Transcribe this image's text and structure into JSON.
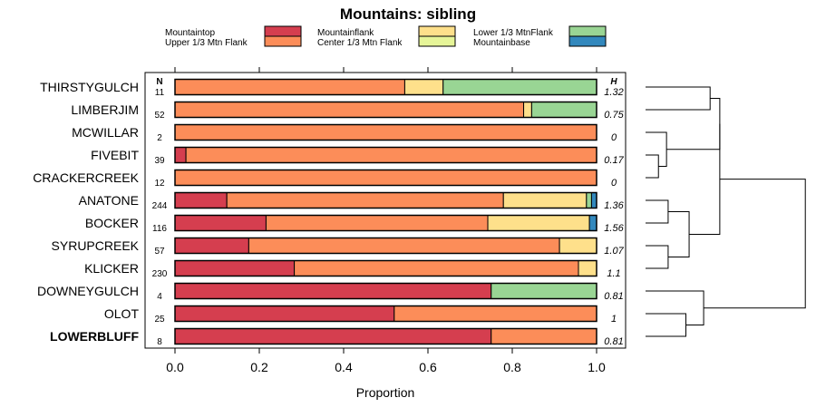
{
  "chart_data": {
    "type": "bar",
    "stacked": true,
    "orientation": "horizontal",
    "title": "Mountains: sibling",
    "xlabel": "Proportion",
    "xlim": [
      0,
      1
    ],
    "xticks": [
      "0.0",
      "0.2",
      "0.4",
      "0.6",
      "0.8",
      "1.0"
    ],
    "n_header": "N",
    "h_header": "H",
    "legend": [
      {
        "label": "Mountaintop",
        "color": "#D53E4F"
      },
      {
        "label": "Upper 1/3 Mtn Flank",
        "color": "#FC8D59"
      },
      {
        "label": "Mountainflank",
        "color": "#FEE08B"
      },
      {
        "label": "Center 1/3 Mtn Flank",
        "color": "#E6F598"
      },
      {
        "label": "Lower 1/3 MtnFlank",
        "color": "#99D594"
      },
      {
        "label": "Mountainbase",
        "color": "#3288BD"
      }
    ],
    "categories": [
      "THIRSTYGULCH",
      "LIMBERJIM",
      "MCWILLAR",
      "FIVEBIT",
      "CRACKERCREEK",
      "ANATONE",
      "BOCKER",
      "SYRUPCREEK",
      "KLICKER",
      "DOWNEYGULCH",
      "OLOT",
      "LOWERBLUFF"
    ],
    "bold_category": "LOWERBLUFF",
    "n": [
      "11",
      "52",
      "2",
      "39",
      "12",
      "244",
      "116",
      "57",
      "230",
      "4",
      "25",
      "8"
    ],
    "h": [
      "1.32",
      "0.75",
      "0",
      "0.17",
      "0",
      "1.36",
      "1.56",
      "1.07",
      "1.1",
      "0.81",
      "1",
      "0.81"
    ],
    "series": [
      {
        "name": "Mountaintop",
        "values": [
          0,
          0,
          0,
          0.026,
          0,
          0.123,
          0.216,
          0.175,
          0.283,
          0.75,
          0.52,
          0.75
        ]
      },
      {
        "name": "Upper 1/3 Mtn Flank",
        "values": [
          0.545,
          0.827,
          1.0,
          0.974,
          1.0,
          0.656,
          0.526,
          0.737,
          0.674,
          0,
          0.48,
          0.25
        ]
      },
      {
        "name": "Mountainflank",
        "values": [
          0.091,
          0.019,
          0,
          0,
          0,
          0.197,
          0.241,
          0.088,
          0.043,
          0,
          0,
          0
        ]
      },
      {
        "name": "Center 1/3 Mtn Flank",
        "values": [
          0,
          0,
          0,
          0,
          0,
          0,
          0,
          0,
          0,
          0,
          0,
          0
        ]
      },
      {
        "name": "Lower 1/3 MtnFlank",
        "values": [
          0.364,
          0.154,
          0,
          0,
          0,
          0.012,
          0,
          0,
          0,
          0.25,
          0,
          0
        ]
      },
      {
        "name": "Mountainbase",
        "values": [
          0,
          0,
          0,
          0,
          0,
          0.012,
          0.017,
          0,
          0,
          0,
          0,
          0
        ]
      }
    ]
  }
}
